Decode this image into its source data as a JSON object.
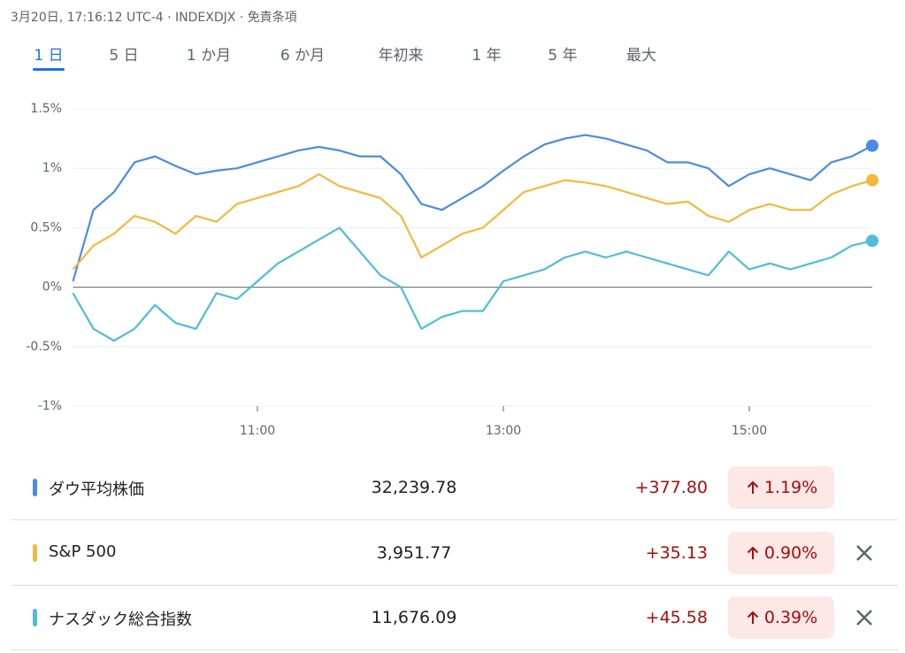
{
  "header": "3月20日, 17:16:12 UTC-4 · INDEXDJX · 免責条項",
  "tabs": [
    "1 日",
    "5 日",
    "1 か月",
    "6 か月",
    "年初来",
    "1 年",
    "5 年",
    "最大"
  ],
  "chart_data": {
    "type": "line",
    "x": [
      "09:30",
      "09:40",
      "09:50",
      "10:00",
      "10:10",
      "10:20",
      "10:30",
      "10:40",
      "10:50",
      "11:00",
      "11:10",
      "11:20",
      "11:30",
      "11:40",
      "11:50",
      "12:00",
      "12:10",
      "12:20",
      "12:30",
      "12:40",
      "12:50",
      "13:00",
      "13:10",
      "13:20",
      "13:30",
      "13:40",
      "13:50",
      "14:00",
      "14:10",
      "14:20",
      "14:30",
      "14:40",
      "14:50",
      "15:00",
      "15:10",
      "15:20",
      "15:30",
      "15:40",
      "15:50",
      "16:00"
    ],
    "xticks": [
      "11:00",
      "13:00",
      "15:00"
    ],
    "ylim": [
      -1,
      1.5
    ],
    "yticks": [
      {
        "value": -1,
        "label": "-1%"
      },
      {
        "value": -0.5,
        "label": "-0.5%"
      },
      {
        "value": 0,
        "label": "0%"
      },
      {
        "value": 0.5,
        "label": "0.5%"
      },
      {
        "value": 1,
        "label": "1%"
      },
      {
        "value": 1.5,
        "label": "1.5%"
      }
    ],
    "grid": true,
    "series": [
      {
        "name": "ダウ平均株価",
        "color": "#4c8be3",
        "values": [
          0.05,
          0.65,
          0.8,
          1.05,
          1.1,
          1.02,
          0.95,
          0.98,
          1.0,
          1.05,
          1.1,
          1.15,
          1.18,
          1.15,
          1.1,
          1.1,
          0.95,
          0.7,
          0.65,
          0.75,
          0.85,
          0.98,
          1.1,
          1.2,
          1.25,
          1.28,
          1.25,
          1.2,
          1.15,
          1.05,
          1.05,
          1.0,
          0.85,
          0.95,
          1.0,
          0.95,
          0.9,
          1.05,
          1.1,
          1.19
        ],
        "price": "32,239.78",
        "change": "+377.80",
        "change_pct": "1.19%"
      },
      {
        "name": "S&P 500",
        "color": "#f5b83d",
        "values": [
          0.15,
          0.35,
          0.45,
          0.6,
          0.55,
          0.45,
          0.6,
          0.55,
          0.7,
          0.75,
          0.8,
          0.85,
          0.95,
          0.85,
          0.8,
          0.75,
          0.6,
          0.25,
          0.35,
          0.45,
          0.5,
          0.65,
          0.8,
          0.85,
          0.9,
          0.88,
          0.85,
          0.8,
          0.75,
          0.7,
          0.72,
          0.6,
          0.55,
          0.65,
          0.7,
          0.65,
          0.65,
          0.78,
          0.85,
          0.9
        ],
        "price": "3,951.77",
        "change": "+35.13",
        "change_pct": "0.90%"
      },
      {
        "name": "ナスダック総合指数",
        "color": "#4fbcd8",
        "values": [
          -0.05,
          -0.35,
          -0.45,
          -0.35,
          -0.15,
          -0.3,
          -0.35,
          -0.05,
          -0.1,
          0.05,
          0.2,
          0.3,
          0.4,
          0.5,
          0.3,
          0.1,
          0.0,
          -0.35,
          -0.25,
          -0.2,
          -0.2,
          0.05,
          0.1,
          0.15,
          0.25,
          0.3,
          0.25,
          0.3,
          0.25,
          0.2,
          0.15,
          0.1,
          0.3,
          0.15,
          0.2,
          0.15,
          0.2,
          0.25,
          0.35,
          0.39
        ],
        "price": "11,676.09",
        "change": "+45.58",
        "change_pct": "0.39%"
      }
    ]
  }
}
